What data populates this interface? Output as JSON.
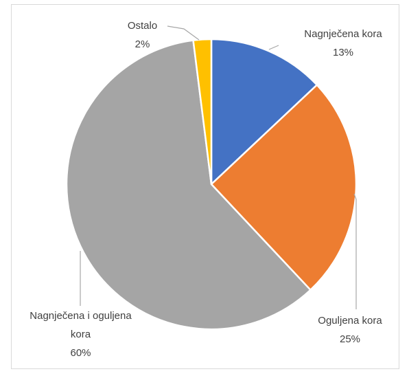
{
  "chart_data": {
    "type": "pie",
    "categories": [
      "Nagnječena kora",
      "Oguljena kora",
      "Nagnječena i oguljena kora",
      "Ostalo"
    ],
    "values": [
      13,
      25,
      60,
      2
    ],
    "value_labels": [
      "13%",
      "25%",
      "60%",
      "2%"
    ],
    "colors": [
      "#4472c4",
      "#ed7d31",
      "#a5a5a5",
      "#ffc000"
    ]
  }
}
